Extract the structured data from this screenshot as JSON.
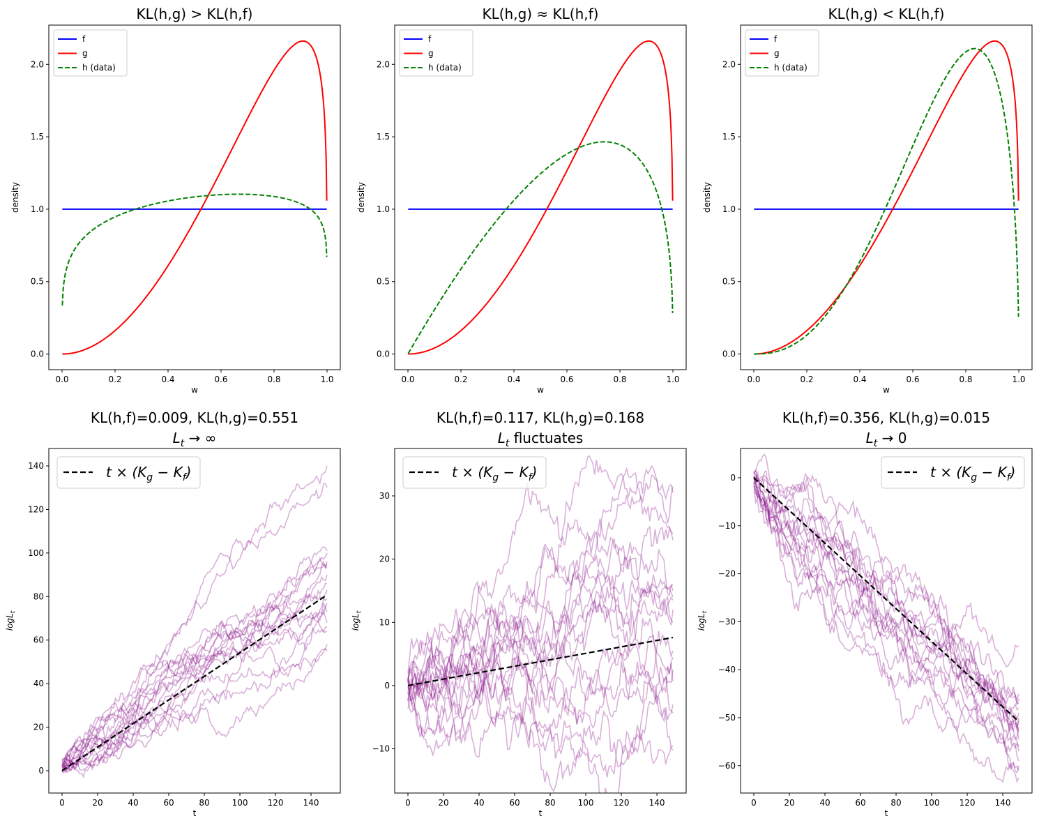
{
  "chart_data": [
    {
      "type": "line",
      "title": "KL(h,g) > KL(h,f)",
      "xlabel": "w",
      "ylabel": "density",
      "xlim": [
        -0.05,
        1.05
      ],
      "ylim": [
        -0.108,
        2.271
      ],
      "xticks": [
        "0.0",
        "0.2",
        "0.4",
        "0.6",
        "0.8",
        "1.0"
      ],
      "yticks": [
        "0.0",
        "0.5",
        "1.0",
        "1.5",
        "2.0"
      ],
      "legend": "upper-left",
      "series": [
        {
          "name": "f",
          "color": "#0000ff",
          "style": "solid",
          "dist": "uniform"
        },
        {
          "name": "g",
          "color": "#ff0000",
          "style": "solid",
          "dist": "beta",
          "a": 3,
          "b": 1.2
        },
        {
          "name": "h (data)",
          "color": "#008000",
          "style": "dashed",
          "dist": "beta",
          "a": 1.2,
          "b": 1.1
        }
      ]
    },
    {
      "type": "line",
      "title": "KL(h,g) ≈ KL(h,f)",
      "xlabel": "w",
      "ylabel": "density",
      "xlim": [
        -0.05,
        1.05
      ],
      "ylim": [
        -0.108,
        2.271
      ],
      "xticks": [
        "0.0",
        "0.2",
        "0.4",
        "0.6",
        "0.8",
        "1.0"
      ],
      "yticks": [
        "0.0",
        "0.5",
        "1.0",
        "1.5",
        "2.0"
      ],
      "legend": "upper-left",
      "series": [
        {
          "name": "f",
          "color": "#0000ff",
          "style": "solid",
          "dist": "uniform"
        },
        {
          "name": "g",
          "color": "#ff0000",
          "style": "solid",
          "dist": "beta",
          "a": 3,
          "b": 1.2
        },
        {
          "name": "h (data)",
          "color": "#008000",
          "style": "dashed",
          "dist": "beta",
          "a": 2,
          "b": 1.35
        }
      ]
    },
    {
      "type": "line",
      "title": "KL(h,g) < KL(h,f)",
      "xlabel": "w",
      "ylabel": "density",
      "xlim": [
        -0.05,
        1.05
      ],
      "ylim": [
        -0.108,
        2.271
      ],
      "xticks": [
        "0.0",
        "0.2",
        "0.4",
        "0.6",
        "0.8",
        "1.0"
      ],
      "yticks": [
        "0.0",
        "0.5",
        "1.0",
        "1.5",
        "2.0"
      ],
      "legend": "upper-left",
      "series": [
        {
          "name": "f",
          "color": "#0000ff",
          "style": "solid",
          "dist": "uniform"
        },
        {
          "name": "g",
          "color": "#ff0000",
          "style": "solid",
          "dist": "beta",
          "a": 3,
          "b": 1.2
        },
        {
          "name": "h (data)",
          "color": "#008000",
          "style": "dashed",
          "dist": "beta",
          "a": 3.5,
          "b": 1.5
        }
      ]
    },
    {
      "type": "line",
      "title": "KL(h,f)=0.009, KL(h,g)=0.551",
      "subtitle": {
        "var": "L",
        "sub": "t",
        "rest": " → ∞"
      },
      "xlabel": "t",
      "ylabel": {
        "var": "logL",
        "sub": "t"
      },
      "xlim": [
        -7.45,
        156.45
      ],
      "ylim": [
        -10.25,
        148
      ],
      "xticks": [
        "0",
        "20",
        "40",
        "60",
        "80",
        "100",
        "120",
        "140"
      ],
      "yticks": [
        "0",
        "20",
        "40",
        "60",
        "80",
        "100",
        "120",
        "140"
      ],
      "legend": "upper-left",
      "legend_label": {
        "a": "t × (K",
        "s1": "g",
        "b": " − K",
        "s2": "f",
        "c": ")"
      },
      "drift": {
        "slope": 0.542,
        "t_max": 149,
        "color": "#000000",
        "style": "dashed"
      },
      "paths": {
        "color": "#800080",
        "alpha": 0.3,
        "t_max": 149,
        "final_values": [
          140,
          130,
          101,
          100,
          96,
          95,
          93,
          90,
          86,
          83,
          79,
          77,
          73,
          68,
          66,
          64,
          58,
          55
        ]
      }
    },
    {
      "type": "line",
      "title": "KL(h,f)=0.117, KL(h,g)=0.168",
      "subtitle": {
        "var": "L",
        "sub": "t",
        "rest": " fluctuates"
      },
      "xlabel": "t",
      "ylabel": {
        "var": "logL",
        "sub": "t"
      },
      "xlim": [
        -7.45,
        156.45
      ],
      "ylim": [
        -17,
        37.5
      ],
      "xticks": [
        "0",
        "20",
        "40",
        "60",
        "80",
        "100",
        "120",
        "140"
      ],
      "yticks": [
        "−10",
        "0",
        "10",
        "20",
        "30"
      ],
      "legend": "upper-left",
      "legend_label": {
        "a": "t × (K",
        "s1": "g",
        "b": " − K",
        "s2": "f",
        "c": ")"
      },
      "drift": {
        "slope": 0.051,
        "t_max": 149,
        "color": "#000000",
        "style": "dashed"
      },
      "paths": {
        "color": "#800080",
        "alpha": 0.3,
        "t_max": 149,
        "final_values": [
          31.5,
          30.5,
          24,
          23,
          16,
          15,
          14,
          13.5,
          12,
          10,
          5.5,
          4.5,
          2.5,
          0.7,
          -3,
          -4.3,
          -9.6,
          -10.2
        ]
      }
    },
    {
      "type": "line",
      "title": "KL(h,f)=0.356, KL(h,g)=0.015",
      "subtitle": {
        "var": "L",
        "sub": "t",
        "rest": " → 0"
      },
      "xlabel": "t",
      "ylabel": {
        "var": "logL",
        "sub": "t"
      },
      "xlim": [
        -7.45,
        156.45
      ],
      "ylim": [
        -65.7,
        6.1
      ],
      "xticks": [
        "0",
        "20",
        "40",
        "60",
        "80",
        "100",
        "120",
        "140"
      ],
      "yticks": [
        "−60",
        "−50",
        "−40",
        "−30",
        "−20",
        "−10",
        "0"
      ],
      "legend": "upper-right",
      "legend_label": {
        "a": "t × (K",
        "s1": "g",
        "b": " − K",
        "s2": "f",
        "c": ")"
      },
      "drift": {
        "slope": -0.341,
        "t_max": 149,
        "color": "#000000",
        "style": "dashed"
      },
      "paths": {
        "color": "#800080",
        "alpha": 0.3,
        "t_max": 149,
        "final_values": [
          -35,
          -45,
          -46,
          -47,
          -48,
          -49,
          -50,
          -51,
          -52,
          -53,
          -54.5,
          -56,
          -57,
          -59,
          -60,
          -61,
          -62.5
        ]
      }
    }
  ]
}
